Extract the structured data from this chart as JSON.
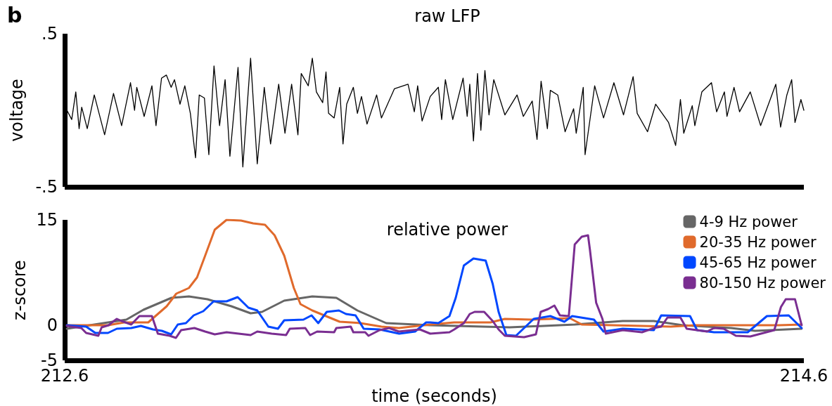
{
  "chart_data": [
    {
      "type": "line",
      "title": "raw LFP",
      "ylabel": "voltage",
      "annotations": [
        "b"
      ],
      "xlim": [
        212.6,
        214.6
      ],
      "ylim": [
        -0.5,
        0.5
      ],
      "yticks": [
        {
          "value": -0.5,
          "label": "-.5"
        },
        {
          "value": 0.5,
          "label": ".5"
        }
      ],
      "tick_labels": "y",
      "grid": false,
      "legend": false,
      "marker": "none",
      "line_style": "solid",
      "series": [
        {
          "color": "#000000",
          "x": [
            212.606,
            212.619,
            212.63,
            212.639,
            212.646,
            212.661,
            212.68,
            212.708,
            212.732,
            212.754,
            212.778,
            212.789,
            212.795,
            212.815,
            212.836,
            212.847,
            212.862,
            212.875,
            212.888,
            212.897,
            212.912,
            212.925,
            212.94,
            212.954,
            212.964,
            212.978,
            212.99,
            213.004,
            213.019,
            213.034,
            213.047,
            213.069,
            213.082,
            213.103,
            213.121,
            213.14,
            213.157,
            213.179,
            213.196,
            213.214,
            213.231,
            213.24,
            213.259,
            213.27,
            213.281,
            213.298,
            213.307,
            213.314,
            213.329,
            213.344,
            213.353,
            213.363,
            213.381,
            213.392,
            213.403,
            213.418,
            213.444,
            213.457,
            213.492,
            213.529,
            213.546,
            213.555,
            213.567,
            213.589,
            213.611,
            213.62,
            213.63,
            213.65,
            213.678,
            213.689,
            213.696,
            213.706,
            213.717,
            213.726,
            213.737,
            213.748,
            213.761,
            213.791,
            213.824,
            213.841,
            213.865,
            213.878,
            213.889,
            213.906,
            213.914,
            213.934,
            213.954,
            213.977,
            213.984,
            214.003,
            214.008,
            214.034,
            214.058,
            214.086,
            214.112,
            214.138,
            214.149,
            214.177,
            214.199,
            214.234,
            214.253,
            214.266,
            214.275,
            214.298,
            214.305,
            214.324,
            214.35,
            214.364,
            214.385,
            214.392,
            214.411,
            214.426,
            214.455,
            214.483,
            214.524,
            214.537,
            214.554,
            214.567,
            214.576,
            214.592,
            214.6
          ],
          "values": [
            0.0,
            -0.06,
            0.12,
            -0.12,
            0.02,
            -0.12,
            0.1,
            -0.16,
            0.11,
            -0.1,
            0.18,
            0.0,
            0.15,
            -0.04,
            0.16,
            -0.1,
            0.21,
            0.23,
            0.15,
            0.2,
            0.04,
            0.16,
            -0.02,
            -0.31,
            0.1,
            0.08,
            -0.29,
            0.29,
            -0.1,
            0.2,
            -0.3,
            0.28,
            -0.37,
            0.34,
            -0.35,
            0.15,
            -0.22,
            0.17,
            -0.15,
            0.17,
            -0.16,
            0.24,
            0.16,
            0.34,
            0.12,
            0.05,
            0.25,
            -0.02,
            -0.05,
            0.15,
            -0.22,
            0.04,
            0.15,
            -0.02,
            0.09,
            -0.09,
            0.1,
            -0.05,
            0.14,
            0.17,
            -0.01,
            0.16,
            -0.07,
            0.09,
            0.15,
            -0.06,
            0.2,
            -0.06,
            0.21,
            -0.04,
            0.17,
            -0.2,
            0.24,
            -0.13,
            0.26,
            -0.03,
            0.2,
            -0.03,
            0.1,
            -0.04,
            0.06,
            -0.19,
            0.19,
            -0.12,
            0.13,
            0.1,
            -0.14,
            0.01,
            -0.15,
            0.15,
            -0.29,
            0.16,
            -0.05,
            0.18,
            -0.03,
            0.22,
            -0.02,
            -0.14,
            0.04,
            -0.08,
            -0.23,
            0.07,
            -0.15,
            0.03,
            -0.1,
            0.12,
            0.18,
            -0.01,
            0.12,
            -0.04,
            0.15,
            -0.01,
            0.12,
            -0.1,
            0.17,
            -0.11,
            0.1,
            0.2,
            -0.08,
            0.07,
            0.0
          ]
        }
      ]
    },
    {
      "type": "line",
      "title": "relative power",
      "xlabel": "time (seconds)",
      "ylabel": "z-score",
      "xlim": [
        212.6,
        214.6
      ],
      "xticks": [
        212.6,
        214.6
      ],
      "ylim": [
        -5,
        15
      ],
      "yticks": [
        -5,
        0,
        15
      ],
      "grid": false,
      "legend": "top right",
      "marker": "none",
      "line_style": "solid",
      "series": [
        {
          "name": "4-9 Hz power",
          "color": "#666666",
          "x": [
            212.606,
            212.767,
            212.813,
            212.889,
            212.936,
            212.986,
            213.051,
            213.103,
            213.134,
            213.194,
            213.27,
            213.335,
            213.392,
            213.47,
            213.589,
            213.804,
            213.98,
            214.11,
            214.194,
            214.272,
            214.403,
            214.468,
            214.594
          ],
          "values": [
            -0.5,
            0.8,
            2.2,
            3.9,
            4.1,
            3.7,
            2.7,
            1.7,
            1.9,
            3.5,
            4.1,
            3.9,
            2.1,
            0.3,
            0,
            -0.3,
            0.1,
            0.6,
            0.6,
            0,
            -0.4,
            -0.8,
            -0.5
          ]
        },
        {
          "name": "20-35 Hz power",
          "color": "#e06a2c",
          "x": [
            212.606,
            212.717,
            212.761,
            212.826,
            212.852,
            212.876,
            212.902,
            212.936,
            212.958,
            212.98,
            213.006,
            213.038,
            213.077,
            213.11,
            213.142,
            213.168,
            213.194,
            213.22,
            213.238,
            213.27,
            213.316,
            213.344,
            213.4,
            213.457,
            213.504,
            213.589,
            213.654,
            213.752,
            213.791,
            213.862,
            213.967,
            213.999,
            214.084,
            214.24,
            214.305,
            214.435,
            214.533,
            214.594
          ],
          "values": [
            0,
            0,
            0.4,
            0.4,
            1.6,
            2.7,
            4.5,
            5.3,
            6.8,
            9.9,
            13.6,
            15.0,
            14.9,
            14.5,
            14.3,
            12.8,
            9.9,
            5.3,
            3.0,
            2.1,
            1.1,
            0.5,
            0.3,
            -0.2,
            -0.4,
            0.1,
            0.4,
            0.4,
            0.9,
            0.8,
            1.0,
            0.1,
            0,
            -0.2,
            0,
            0,
            0,
            0.1
          ]
        },
        {
          "name": "45-65 Hz power",
          "color": "#0047ff",
          "x": [
            212.606,
            212.658,
            212.683,
            212.717,
            212.741,
            212.78,
            212.806,
            212.839,
            212.863,
            212.888,
            212.906,
            212.928,
            212.949,
            212.975,
            213.003,
            213.038,
            213.068,
            213.097,
            213.121,
            213.151,
            213.177,
            213.194,
            213.246,
            213.268,
            213.286,
            213.309,
            213.342,
            213.361,
            213.387,
            213.409,
            213.452,
            213.505,
            213.548,
            213.578,
            213.589,
            213.611,
            213.641,
            213.658,
            213.68,
            213.706,
            213.739,
            213.758,
            213.774,
            213.795,
            213.821,
            213.843,
            213.869,
            213.914,
            213.952,
            213.973,
            214.032,
            214.058,
            214.11,
            214.194,
            214.214,
            214.292,
            214.311,
            214.357,
            214.448,
            214.5,
            214.559,
            214.594
          ],
          "values": [
            0,
            -0.2,
            -1.1,
            -1.1,
            -0.5,
            -0.4,
            -0.1,
            -0.6,
            -0.8,
            -1.3,
            0.1,
            0.3,
            1.4,
            2.0,
            3.4,
            3.4,
            4.0,
            2.5,
            2.1,
            -0.2,
            -0.5,
            0.7,
            0.8,
            1.4,
            0.3,
            1.9,
            2.1,
            1.6,
            1.4,
            -0.5,
            -0.6,
            -1.2,
            -0.9,
            0.4,
            0.4,
            0.3,
            1.3,
            3.9,
            8.5,
            9.5,
            9.2,
            5.9,
            1.9,
            -1.4,
            -1.5,
            -0.4,
            0.9,
            1.3,
            0.5,
            1.3,
            0.8,
            -0.9,
            -0.5,
            -0.7,
            1.4,
            1.3,
            -0.7,
            -1.0,
            -1.0,
            1.3,
            1.4,
            -0.4
          ]
        },
        {
          "name": "80-150 Hz power",
          "color": "#7a2e91",
          "x": [
            212.606,
            212.645,
            212.658,
            212.691,
            212.7,
            212.719,
            212.728,
            212.741,
            212.754,
            212.78,
            212.802,
            212.836,
            212.852,
            212.884,
            212.901,
            212.915,
            212.951,
            212.98,
            213.006,
            213.038,
            213.103,
            213.121,
            213.16,
            213.199,
            213.209,
            213.251,
            213.264,
            213.283,
            213.329,
            213.335,
            213.374,
            213.381,
            213.413,
            213.422,
            213.452,
            213.478,
            213.504,
            213.561,
            213.589,
            213.641,
            213.654,
            213.68,
            213.696,
            213.709,
            213.735,
            213.758,
            213.774,
            213.791,
            213.843,
            213.875,
            213.888,
            213.908,
            213.925,
            213.94,
            213.964,
            213.98,
            213.999,
            214.016,
            214.021,
            214.038,
            214.055,
            214.064,
            214.11,
            214.162,
            214.194,
            214.214,
            214.231,
            214.266,
            214.283,
            214.338,
            214.357,
            214.383,
            214.416,
            214.455,
            214.52,
            214.538,
            214.551,
            214.576,
            214.594
          ],
          "values": [
            -0.1,
            -0.4,
            -1.1,
            -1.5,
            -0.3,
            0,
            0.4,
            0.9,
            0.6,
            0.1,
            1.3,
            1.3,
            -1.2,
            -1.5,
            -1.8,
            -0.7,
            -0.4,
            -0.9,
            -1.3,
            -1.0,
            -1.4,
            -0.9,
            -1.2,
            -1.4,
            -0.5,
            -0.4,
            -1.4,
            -0.9,
            -1.0,
            -0.4,
            -0.2,
            -1.0,
            -1.0,
            -1.5,
            -0.7,
            -0.4,
            -0.9,
            -0.6,
            -1.2,
            -1.0,
            -0.6,
            0.3,
            1.6,
            1.9,
            1.9,
            0.6,
            -0.6,
            -1.5,
            -1.7,
            -1.3,
            1.9,
            2.3,
            2.8,
            1.4,
            1.3,
            11.5,
            12.6,
            12.8,
            10.8,
            3.2,
            0.9,
            -1.2,
            -0.7,
            -1.0,
            -0.4,
            -0.2,
            1.1,
            1.1,
            -0.5,
            -0.9,
            -0.4,
            -0.5,
            -1.5,
            -1.6,
            -0.7,
            2.6,
            3.7,
            3.7,
            0
          ]
        }
      ]
    }
  ]
}
